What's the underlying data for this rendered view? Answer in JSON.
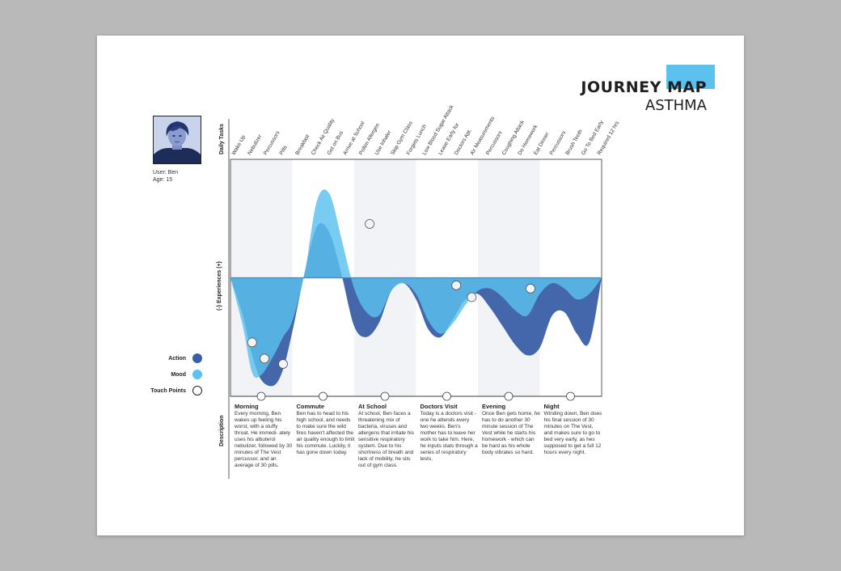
{
  "title": {
    "main": "JOURNEY MAP",
    "sub": "ASTHMA",
    "accent_color": "#5cc1ee"
  },
  "user": {
    "name_line": "User: Ben",
    "age_line": "Age: 15",
    "avatar_icon": "teen-boy-photo"
  },
  "labels": {
    "daily_tasks": "Daily Tasks",
    "experiences": "(-)    Experiences    (+)",
    "description": "Description"
  },
  "legend": [
    {
      "label": "Action",
      "color": "#3a5fa6",
      "kind": "action"
    },
    {
      "label": "Mood",
      "color": "#5cc1ee",
      "kind": "mood"
    },
    {
      "label": "Touch Points",
      "color": "#ffffff",
      "kind": "touch"
    }
  ],
  "tasks": [
    "Wake Up",
    "Nebulizer",
    "Percussors",
    "Pills",
    "Breakfast",
    "Check Air Quality",
    "Get on Bus",
    "Arrive at School",
    "Pollen Allergen",
    "Use Inhaler",
    "Skip Gym Class",
    "Forgets Lunch",
    "Low Blood Sugar Attack",
    "Leave Early for",
    "Doctors Apt.",
    "Air Measurements",
    "Percussors",
    "Coughing Attack",
    "Do Homework",
    "Eat Dinner",
    "Percussors",
    "Brush Teeth",
    "Go To Bed Early",
    "Required 12 hrs"
  ],
  "chart_data": {
    "type": "area",
    "x": [
      0,
      0.2,
      0.35,
      0.5,
      0.7,
      0.85,
      1.0,
      1.2,
      1.4,
      1.6,
      1.8,
      2.0,
      2.2,
      2.4,
      2.6,
      2.8,
      3.0,
      3.2,
      3.4,
      3.6,
      3.8,
      4.0,
      4.2,
      4.4,
      4.6,
      4.8,
      5.0,
      5.2,
      5.4,
      5.6,
      5.8,
      6.0
    ],
    "series": [
      {
        "name": "Action",
        "color": "#3a5fa6",
        "values": [
          0,
          -0.35,
          -0.72,
          -0.95,
          -1.0,
          -0.85,
          -0.5,
          0.05,
          0.48,
          0.42,
          0.02,
          -0.45,
          -0.55,
          -0.42,
          -0.12,
          -0.05,
          -0.2,
          -0.48,
          -0.55,
          -0.38,
          -0.2,
          -0.15,
          -0.28,
          -0.45,
          -0.62,
          -0.72,
          -0.65,
          -0.35,
          -0.32,
          -0.52,
          -0.6,
          0
        ]
      },
      {
        "name": "Mood",
        "color": "#5cc1ee",
        "values": [
          0,
          -0.45,
          -0.88,
          -0.9,
          -0.72,
          -0.55,
          -0.4,
          0.05,
          0.72,
          0.78,
          0.35,
          -0.1,
          -0.32,
          -0.35,
          -0.12,
          -0.05,
          -0.15,
          -0.4,
          -0.52,
          -0.42,
          -0.25,
          -0.12,
          -0.1,
          -0.18,
          -0.3,
          -0.35,
          -0.15,
          -0.05,
          -0.1,
          -0.2,
          -0.15,
          0
        ]
      }
    ],
    "touch_points": [
      {
        "x": 0.35,
        "y": -0.6
      },
      {
        "x": 0.55,
        "y": -0.75
      },
      {
        "x": 0.85,
        "y": -0.8
      },
      {
        "x": 2.25,
        "y": 0.5
      },
      {
        "x": 3.65,
        "y": -0.07
      },
      {
        "x": 3.9,
        "y": -0.18
      },
      {
        "x": 4.85,
        "y": -0.1
      }
    ],
    "ylim": [
      -1.1,
      1.1
    ],
    "xlim": [
      0,
      6
    ]
  },
  "phases": [
    {
      "title": "Morning",
      "text": "Every morning, Ben wakes up feeling his worst, with a stuffy throat. He immedi- ately uses his albuterol nebulizer, followed by 30 minutes of The Vest percussor, and an average of 30 pills."
    },
    {
      "title": "Commute",
      "text": "Ben has to head to his high school, and needs to make sure the wild fires haven't affected the air quality enough to limit his commute. Luckily, it has gone down today."
    },
    {
      "title": "At School",
      "text": "At school, Ben faces a threatening mix of bacteria, viruses and allergens that irritate his sensitive respiratory system. Due to his shortness of breath and lack of mobility, he sits out of gym class."
    },
    {
      "title": "Doctors Visit",
      "text": "Today is a doctors visit - one he attends every two weeks. Ben's mother has to leave her work to take him. Here, he inputs stats through a series of respiratory tests."
    },
    {
      "title": "Evening",
      "text": "Once Ben gets home, he has to do another 30 minute session of The Vest while he starts his homework - which can be hard as his whole body vibrates so hard."
    },
    {
      "title": "Night",
      "text": "Winding down, Ben does his final session of 30 minutes on The Vest, and makes sure to go to bed very early, as hes supposed to get a full 12 hours every night."
    }
  ]
}
